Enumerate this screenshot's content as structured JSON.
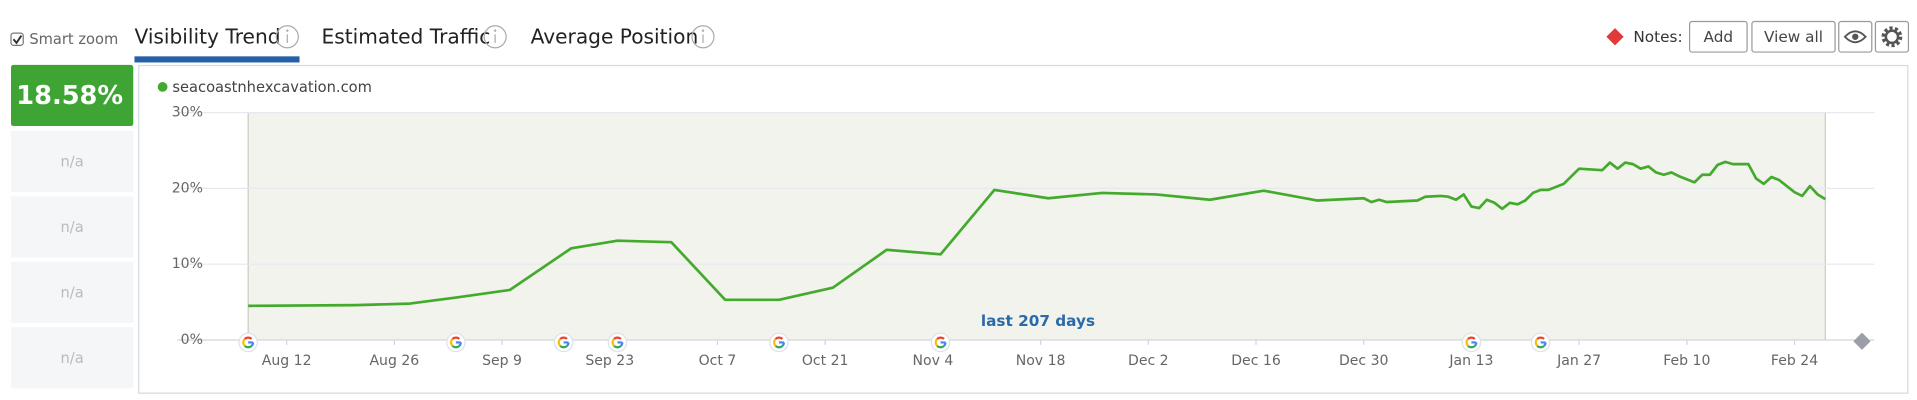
{
  "toolbar": {
    "smart_zoom": "Smart zoom",
    "tabs": [
      "Visibility Trend",
      "Estimated Traffic",
      "Average Position"
    ],
    "notes_label": "Notes:",
    "buttons": [
      "Add",
      "View all"
    ]
  },
  "sidebar": {
    "current_value": "18.58%",
    "rows": [
      "n/a",
      "n/a",
      "n/a",
      "n/a"
    ]
  },
  "chart_data": {
    "type": "line",
    "annotation": "last 207 days",
    "x": [
      "Aug 7",
      "Aug 21",
      "Aug 28",
      "Sep 3",
      "Sep 10",
      "Sep 18",
      "Sep 24",
      "Oct 1",
      "Oct 8",
      "Oct 15",
      "Oct 22",
      "Oct 29",
      "Nov 5",
      "Nov 12",
      "Nov 19",
      "Nov 26",
      "Dec 3",
      "Dec 10",
      "Dec 17",
      "Dec 24",
      "Dec 30",
      "Dec 31",
      "Jan 1",
      "Jan 2",
      "Jan 6",
      "Jan 7",
      "Jan 9",
      "Jan 10",
      "Jan 11",
      "Jan 12",
      "Jan 13",
      "Jan 14",
      "Jan 15",
      "Jan 16",
      "Jan 17",
      "Jan 18",
      "Jan 19",
      "Jan 20",
      "Jan 21",
      "Jan 22",
      "Jan 23",
      "Jan 25",
      "Jan 27",
      "Jan 30",
      "Jan 31",
      "Feb 1",
      "Feb 2",
      "Feb 3",
      "Feb 4",
      "Feb 5",
      "Feb 6",
      "Feb 7",
      "Feb 8",
      "Feb 9",
      "Feb 11",
      "Feb 12",
      "Feb 13",
      "Feb 14",
      "Feb 15",
      "Feb 16",
      "Feb 18",
      "Feb 19",
      "Feb 20",
      "Feb 21",
      "Feb 22",
      "Feb 24",
      "Feb 25",
      "Feb 26",
      "Feb 27",
      "Feb 28"
    ],
    "series": [
      {
        "name": "seacoastnhexcavation.com",
        "color": "#44aa2e",
        "values": [
          4.5,
          4.6,
          4.8,
          5.6,
          6.6,
          12.1,
          13.1,
          12.9,
          5.3,
          5.3,
          6.9,
          11.9,
          11.3,
          19.8,
          18.7,
          19.4,
          19.2,
          18.5,
          19.7,
          18.4,
          18.7,
          18.2,
          18.5,
          18.2,
          18.4,
          18.9,
          19.0,
          18.9,
          18.5,
          19.2,
          17.6,
          17.4,
          18.5,
          18.1,
          17.3,
          18.1,
          17.9,
          18.4,
          19.4,
          19.8,
          19.8,
          20.6,
          22.6,
          22.4,
          23.4,
          22.6,
          23.4,
          23.2,
          22.6,
          22.9,
          22.1,
          21.8,
          22.1,
          21.6,
          20.8,
          21.8,
          21.8,
          23.1,
          23.5,
          23.2,
          23.2,
          21.3,
          20.6,
          21.5,
          21.1,
          19.5,
          19.0,
          20.3,
          19.2,
          18.58
        ]
      }
    ],
    "xlim": [
      "Aug 7",
      "Feb 28"
    ],
    "xticks": [
      "Aug 12",
      "Aug 26",
      "Sep 9",
      "Sep 23",
      "Oct 7",
      "Oct 21",
      "Nov 4",
      "Nov 18",
      "Dec 2",
      "Dec 16",
      "Dec 30",
      "Jan 13",
      "Jan 27",
      "Feb 10",
      "Feb 24"
    ],
    "ylim": [
      0,
      30
    ],
    "yticks": [
      {
        "value": 0,
        "label": "0%"
      },
      {
        "value": 10,
        "label": "10%"
      },
      {
        "value": 20,
        "label": "20%"
      },
      {
        "value": 30,
        "label": "30%"
      }
    ],
    "grid": true,
    "events": [
      "Aug 7",
      "Sep 3",
      "Sep 17",
      "Sep 24",
      "Oct 15",
      "Nov 5",
      "Jan 13",
      "Jan 22"
    ]
  }
}
